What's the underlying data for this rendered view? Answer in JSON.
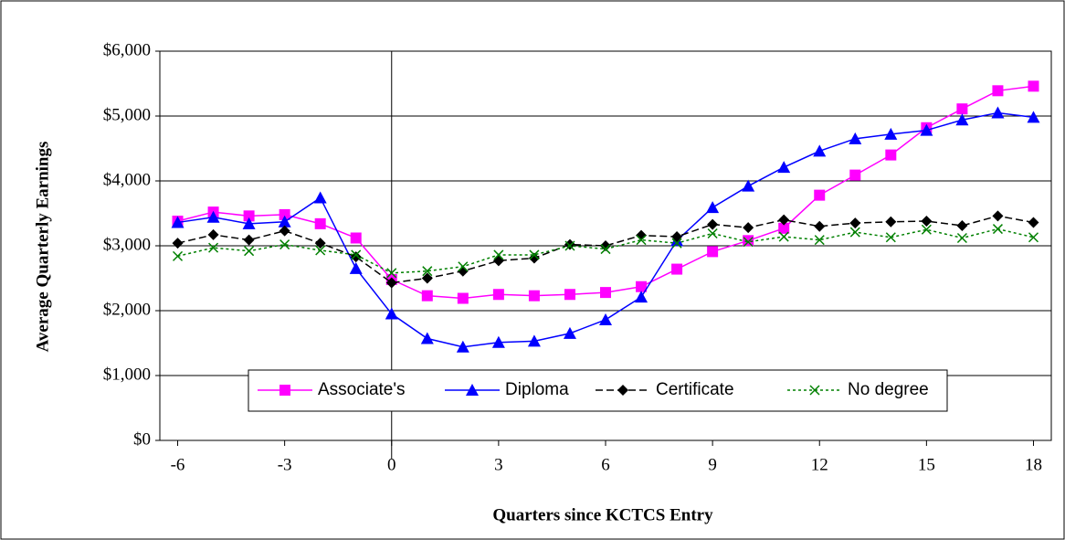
{
  "chart_data": {
    "type": "line",
    "x_label": "Quarters since KCTCS Entry",
    "y_label": "Average Quarterly Earnings",
    "x": [
      -6,
      -5,
      -4,
      -3,
      -2,
      -1,
      0,
      1,
      2,
      3,
      4,
      5,
      6,
      7,
      8,
      9,
      10,
      11,
      12,
      13,
      14,
      15,
      16,
      17,
      18
    ],
    "xlim": [
      -6.5,
      18.5
    ],
    "xticks": [
      -6,
      -3,
      0,
      3,
      6,
      9,
      12,
      15,
      18
    ],
    "ylim": [
      0,
      6000
    ],
    "yticks": [
      {
        "value": 0,
        "label": "$0"
      },
      {
        "value": 1000,
        "label": "$1,000"
      },
      {
        "value": 2000,
        "label": "$2,000"
      },
      {
        "value": 3000,
        "label": "$3,000"
      },
      {
        "value": 4000,
        "label": "$4,000"
      },
      {
        "value": 5000,
        "label": "$5,000"
      },
      {
        "value": 6000,
        "label": "$6,000"
      }
    ],
    "grid": true,
    "series": [
      {
        "name": "Associate's",
        "color": "#ff00ff",
        "marker": "square",
        "dash": "solid",
        "values": [
          3380,
          3520,
          3460,
          3480,
          3340,
          3120,
          2480,
          2230,
          2190,
          2250,
          2230,
          2250,
          2280,
          2370,
          2640,
          2910,
          3080,
          3270,
          3780,
          4090,
          4400,
          4820,
          5110,
          5390,
          5460
        ]
      },
      {
        "name": "Diploma",
        "color": "#0000ff",
        "marker": "triangle",
        "dash": "solid",
        "values": [
          3360,
          3440,
          3340,
          3370,
          3740,
          2650,
          1950,
          1570,
          1440,
          1510,
          1530,
          1650,
          1860,
          2210,
          3080,
          3590,
          3920,
          4210,
          4460,
          4650,
          4720,
          4780,
          4940,
          5050,
          4980
        ]
      },
      {
        "name": "Certificate",
        "color": "#000000",
        "marker": "diamond",
        "dash": "dashed",
        "values": [
          3040,
          3170,
          3090,
          3230,
          3040,
          2830,
          2430,
          2500,
          2610,
          2770,
          2810,
          3020,
          3000,
          3160,
          3140,
          3330,
          3280,
          3400,
          3300,
          3350,
          3370,
          3380,
          3310,
          3460,
          3360
        ]
      },
      {
        "name": "No degree",
        "color": "#008000",
        "marker": "x",
        "dash": "dotted",
        "values": [
          2840,
          2970,
          2920,
          3020,
          2930,
          2860,
          2580,
          2610,
          2680,
          2860,
          2860,
          3000,
          2950,
          3090,
          3040,
          3190,
          3060,
          3140,
          3090,
          3210,
          3130,
          3250,
          3120,
          3260,
          3130
        ]
      }
    ]
  }
}
